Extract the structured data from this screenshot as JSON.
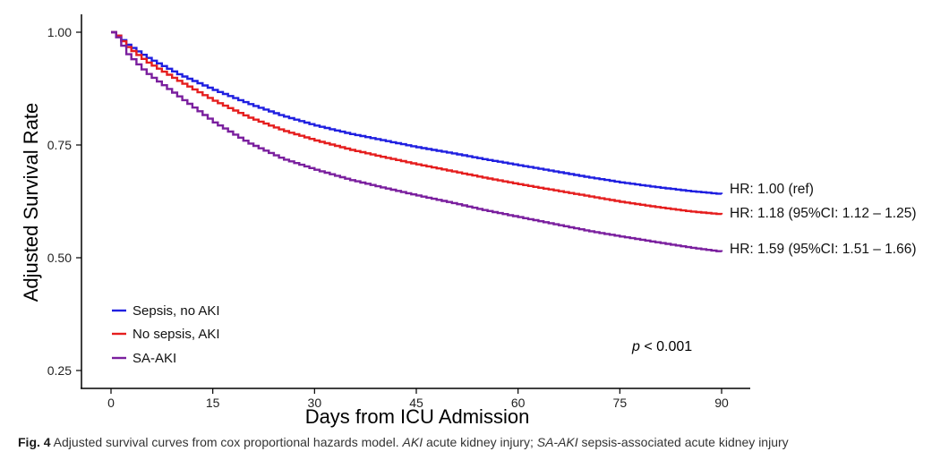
{
  "chart_data": {
    "type": "line",
    "step": true,
    "xlabel": "Days from ICU Admission",
    "ylabel": "Adjusted Survival Rate",
    "xlim": [
      0,
      90
    ],
    "ylim": [
      0.25,
      1.0
    ],
    "xticks": [
      0,
      15,
      30,
      45,
      60,
      75,
      90
    ],
    "yticks": [
      0.25,
      0.5,
      0.75,
      1.0
    ],
    "ytick_labels": [
      "0.25",
      "0.50",
      "0.75",
      "1.00"
    ],
    "grid": false,
    "legend_position": "bottom-left",
    "annotation": {
      "p_label": "p",
      "p_value": " < 0.001"
    },
    "series": [
      {
        "name": "Sepsis, no AKI",
        "color": "#1f1fe0",
        "hr_label": "HR: 1.00 (ref)",
        "x": [
          0,
          1,
          2,
          5,
          10,
          15,
          20,
          25,
          30,
          35,
          40,
          45,
          50,
          55,
          60,
          65,
          70,
          75,
          80,
          85,
          90
        ],
        "y": [
          1.0,
          0.99,
          0.975,
          0.945,
          0.905,
          0.872,
          0.842,
          0.815,
          0.793,
          0.775,
          0.76,
          0.745,
          0.732,
          0.718,
          0.705,
          0.692,
          0.679,
          0.667,
          0.657,
          0.648,
          0.641
        ]
      },
      {
        "name": "No sepsis, AKI",
        "color": "#e51e1e",
        "hr_label": "HR: 1.18 (95%CI: 1.12 – 1.25)",
        "x": [
          0,
          1,
          2,
          5,
          10,
          15,
          20,
          25,
          30,
          35,
          40,
          45,
          50,
          55,
          60,
          65,
          70,
          75,
          80,
          85,
          90
        ],
        "y": [
          1.0,
          0.99,
          0.97,
          0.935,
          0.89,
          0.848,
          0.812,
          0.783,
          0.76,
          0.74,
          0.723,
          0.707,
          0.692,
          0.677,
          0.663,
          0.65,
          0.637,
          0.624,
          0.613,
          0.603,
          0.596
        ]
      },
      {
        "name": "SA-AKI",
        "color": "#7a1f9e",
        "hr_label": "HR: 1.59 (95%CI: 1.51 – 1.66)",
        "x": [
          0,
          1,
          2,
          5,
          10,
          15,
          20,
          25,
          30,
          35,
          40,
          45,
          50,
          55,
          60,
          65,
          70,
          75,
          80,
          85,
          90
        ],
        "y": [
          1.0,
          0.985,
          0.955,
          0.91,
          0.855,
          0.8,
          0.755,
          0.72,
          0.695,
          0.673,
          0.655,
          0.638,
          0.622,
          0.605,
          0.59,
          0.575,
          0.56,
          0.547,
          0.535,
          0.523,
          0.513
        ]
      }
    ]
  },
  "caption": {
    "label": "Fig. 4",
    "text1": "  Adjusted survival curves from cox proportional hazards model. ",
    "abbr1": "AKI",
    "text2": " acute kidney injury; ",
    "abbr2": "SA-AKI",
    "text3": " sepsis-associated acute kidney injury"
  }
}
